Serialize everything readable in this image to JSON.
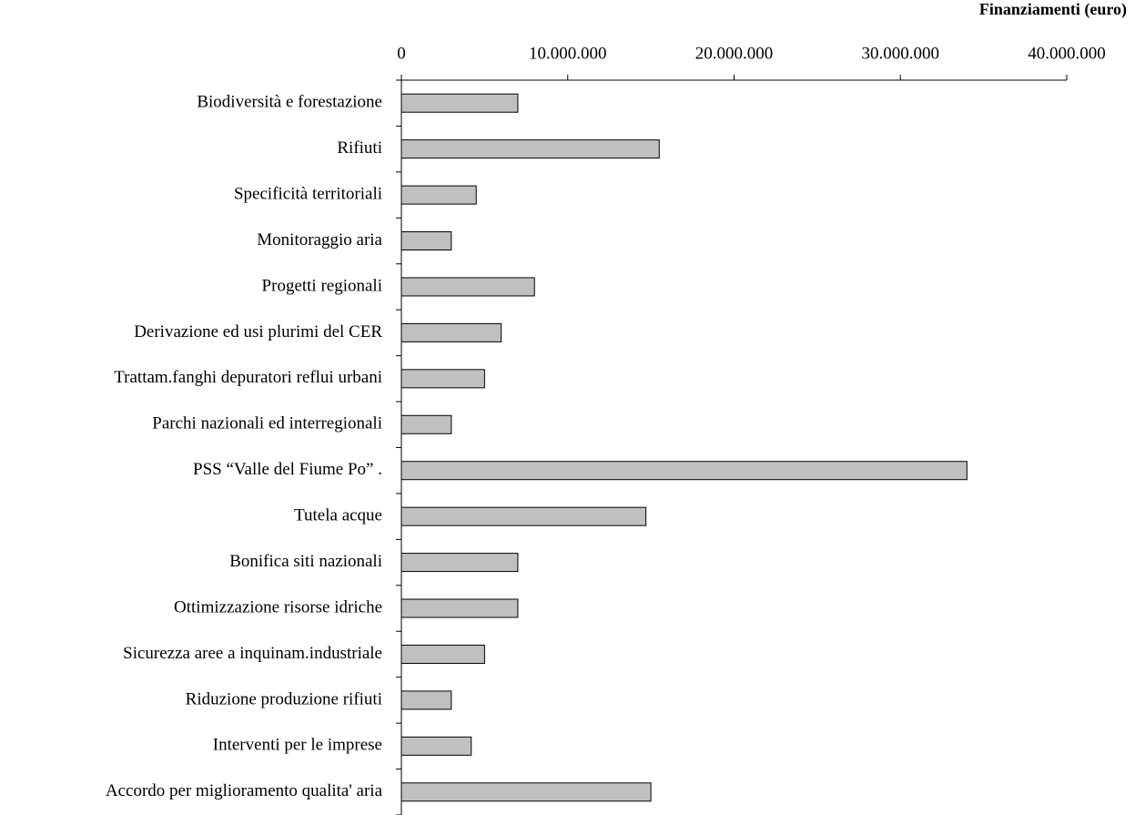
{
  "chart_data": {
    "type": "barh",
    "x_label": "Finanziamenti (euro)",
    "categories": [
      "Biodiversità e forestazione",
      "Rifiuti",
      "Specificità territoriali",
      "Monitoraggio aria",
      "Progetti regionali",
      "Derivazione ed usi plurimi del CER",
      "Trattam.fanghi depuratori reflui urbani",
      "Parchi nazionali ed interregionali",
      "PSS “Valle del Fiume Po” .",
      "Tutela acque",
      "Bonifica siti nazionali",
      "Ottimizzazione risorse idriche",
      "Sicurezza aree a inquinam.industriale",
      "Riduzione produzione rifiuti",
      "Interventi per le imprese",
      "Accordo per miglioramento qualita' aria"
    ],
    "values": [
      7000000,
      15500000,
      4500000,
      3000000,
      8000000,
      6000000,
      5000000,
      3000000,
      34000000,
      14700000,
      7000000,
      7000000,
      5000000,
      3000000,
      4200000,
      15000000
    ],
    "color": "#c0c0c0",
    "xlim": [
      0,
      40000000
    ],
    "xticks": [
      0,
      {
        "value": 10000000,
        "label": "10.000.000"
      },
      {
        "value": 20000000,
        "label": "20.000.000"
      },
      {
        "value": 30000000,
        "label": "30.000.000"
      },
      {
        "value": 40000000,
        "label": "40.000.000"
      }
    ],
    "grid": false
  }
}
